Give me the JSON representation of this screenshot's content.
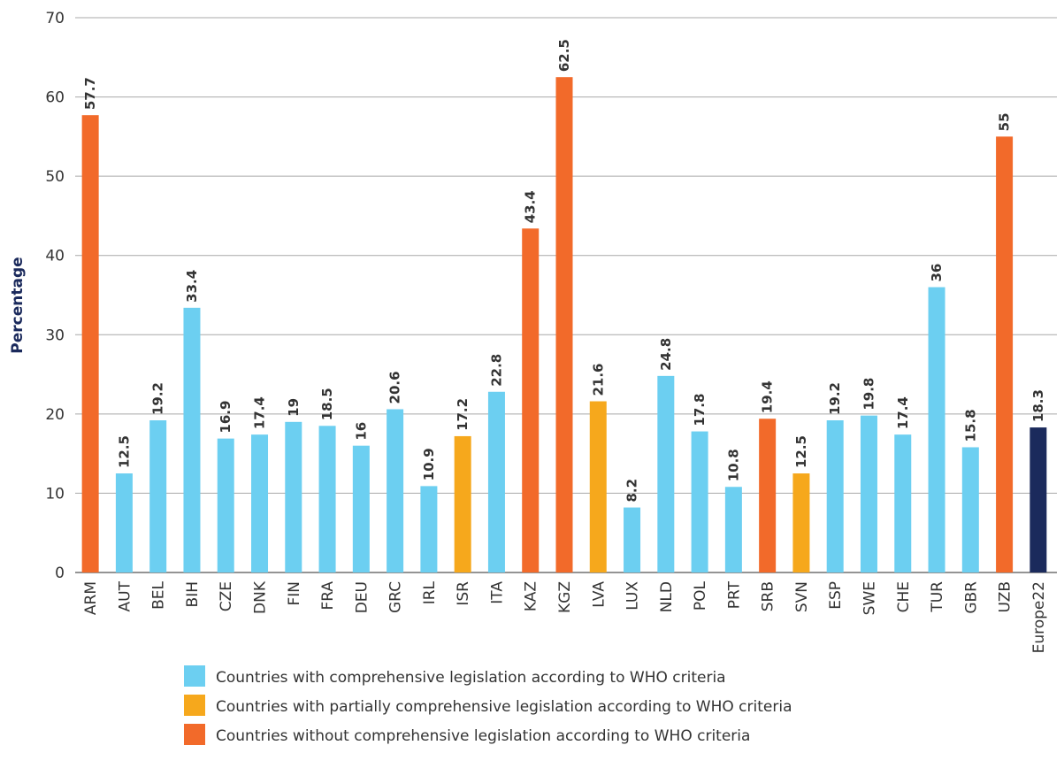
{
  "chart_data": {
    "type": "bar",
    "title": "",
    "xlabel": "",
    "ylabel": "Percentage",
    "ylim": [
      0,
      70
    ],
    "yticks": [
      0,
      10,
      20,
      30,
      40,
      50,
      60,
      70
    ],
    "grid": true,
    "legend_position": "bottom",
    "categories": [
      "ARM",
      "AUT",
      "BEL",
      "BIH",
      "CZE",
      "DNK",
      "FIN",
      "FRA",
      "DEU",
      "GRC",
      "IRL",
      "ISR",
      "ITA",
      "KAZ",
      "KGZ",
      "LVA",
      "LUX",
      "NLD",
      "POL",
      "PRT",
      "SRB",
      "SVN",
      "ESP",
      "SWE",
      "CHE",
      "TUR",
      "GBR",
      "UZB",
      "Europe22"
    ],
    "values": [
      57.7,
      12.5,
      19.2,
      33.4,
      16.9,
      17.4,
      19,
      18.5,
      16,
      20.6,
      10.9,
      17.2,
      22.8,
      43.4,
      62.5,
      21.6,
      8.2,
      24.8,
      17.8,
      10.8,
      19.4,
      12.5,
      19.2,
      19.8,
      17.4,
      36,
      15.8,
      55,
      18.3
    ],
    "value_labels": [
      "57.7",
      "12.5",
      "19.2",
      "33.4",
      "16.9",
      "17.4",
      "19",
      "18.5",
      "16",
      "20.6",
      "10.9",
      "17.2",
      "22.8",
      "43.4",
      "62.5",
      "21.6",
      "8.2",
      "24.8",
      "17.8",
      "10.8",
      "19.4",
      "12.5",
      "19.2",
      "19.8",
      "17.4",
      "36",
      "15.8",
      "55",
      "18.3"
    ],
    "groups": [
      "without",
      "comprehensive",
      "comprehensive",
      "comprehensive",
      "comprehensive",
      "comprehensive",
      "comprehensive",
      "comprehensive",
      "comprehensive",
      "comprehensive",
      "comprehensive",
      "partial",
      "comprehensive",
      "without",
      "without",
      "partial",
      "comprehensive",
      "comprehensive",
      "comprehensive",
      "comprehensive",
      "without",
      "partial",
      "comprehensive",
      "comprehensive",
      "comprehensive",
      "comprehensive",
      "comprehensive",
      "without",
      "average"
    ],
    "colors": {
      "comprehensive": "#6ccff1",
      "partial": "#f6a81c",
      "without": "#f26a2a",
      "average": "#1b2a5c"
    },
    "legend": [
      {
        "group": "comprehensive",
        "label": "Countries with comprehensive legislation according to WHO criteria"
      },
      {
        "group": "partial",
        "label": "Countries with partially comprehensive legislation according to WHO criteria"
      },
      {
        "group": "without",
        "label": "Countries without comprehensive legislation according to WHO criteria"
      }
    ]
  }
}
